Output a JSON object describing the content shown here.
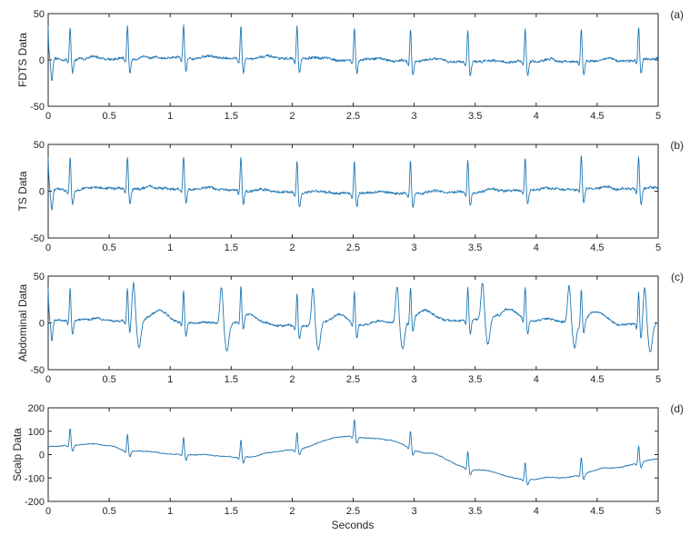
{
  "trace_color": "#1f77b4",
  "xlabel": "Seconds",
  "chart_data": [
    {
      "type": "line",
      "tag": "(a)",
      "ylabel": "FDTS Data",
      "xlim": [
        0,
        5
      ],
      "ylim": [
        -50,
        50
      ],
      "xticks": [
        0,
        0.5,
        1,
        1.5,
        2,
        2.5,
        3,
        3.5,
        4,
        4.5,
        5
      ],
      "xtick_labels": [
        "0",
        "0.5",
        "1",
        "1.5",
        "2",
        "2.5",
        "3",
        "3.5",
        "4",
        "4.5",
        "5"
      ],
      "yticks": [
        -50,
        0,
        50
      ],
      "ytick_labels": [
        "-50",
        "0",
        "50"
      ],
      "series": [
        {
          "beats": [
            0.18,
            0.65,
            1.11,
            1.58,
            2.04,
            2.51,
            2.97,
            3.44,
            3.91,
            4.37,
            4.84
          ],
          "beat_amp": 36,
          "trough": -15,
          "noise": 3,
          "slow_wave": [
            {
              "amp": 2,
              "freq": 0.2,
              "phase": 0
            }
          ],
          "extra_beats": [],
          "onset": "spike-start"
        }
      ]
    },
    {
      "type": "line",
      "tag": "(b)",
      "ylabel": "TS Data",
      "xlim": [
        0,
        5
      ],
      "ylim": [
        -50,
        50
      ],
      "xticks": [
        0,
        0.5,
        1,
        1.5,
        2,
        2.5,
        3,
        3.5,
        4,
        4.5,
        5
      ],
      "xtick_labels": [
        "0",
        "0.5",
        "1",
        "1.5",
        "2",
        "2.5",
        "3",
        "3.5",
        "4",
        "4.5",
        "5"
      ],
      "yticks": [
        -50,
        0,
        50
      ],
      "ytick_labels": [
        "-50",
        "0",
        "50"
      ],
      "series": [
        {
          "beats": [
            0.18,
            0.65,
            1.11,
            1.58,
            2.04,
            2.51,
            2.97,
            3.44,
            3.91,
            4.37,
            4.84
          ],
          "beat_amp": 36,
          "trough": -15,
          "noise": 3,
          "slow_wave": [
            {
              "amp": 2.5,
              "freq": 0.25,
              "phase": 0.5
            }
          ],
          "extra_beats": [],
          "onset": "spike-start"
        }
      ]
    },
    {
      "type": "line",
      "tag": "(c)",
      "ylabel": "Abdominal Data",
      "xlim": [
        0,
        5
      ],
      "ylim": [
        -50,
        50
      ],
      "xticks": [
        0,
        0.5,
        1,
        1.5,
        2,
        2.5,
        3,
        3.5,
        4,
        4.5,
        5
      ],
      "xtick_labels": [
        "0",
        "0.5",
        "1",
        "1.5",
        "2",
        "2.5",
        "3",
        "3.5",
        "4",
        "4.5",
        "5"
      ],
      "yticks": [
        -50,
        0,
        50
      ],
      "ytick_labels": [
        "-50",
        "0",
        "50"
      ],
      "series": [
        {
          "beats": [
            0.18,
            0.65,
            1.11,
            1.58,
            2.04,
            2.51,
            2.97,
            3.44,
            3.91,
            4.37,
            4.84
          ],
          "beat_amp": 35,
          "trough": -15,
          "noise": 2.5,
          "slow_wave": [
            {
              "amp": 3,
              "freq": 0.3,
              "phase": 1
            }
          ],
          "extra_beats": [
            0.7,
            1.42,
            2.17,
            2.86,
            3.56,
            4.27,
            4.89
          ],
          "extra_amp": 40,
          "extra_trough": -28,
          "onset": "spike-start"
        }
      ]
    },
    {
      "type": "line",
      "tag": "(d)",
      "ylabel": "Scalp Data",
      "xlim": [
        0,
        5
      ],
      "ylim": [
        -200,
        200
      ],
      "xticks": [
        0,
        0.5,
        1,
        1.5,
        2,
        2.5,
        3,
        3.5,
        4,
        4.5,
        5
      ],
      "xtick_labels": [
        "0",
        "0.5",
        "1",
        "1.5",
        "2",
        "2.5",
        "3",
        "3.5",
        "4",
        "4.5",
        "5"
      ],
      "yticks": [
        -200,
        -100,
        0,
        100,
        200
      ],
      "ytick_labels": [
        "-200",
        "-100",
        "0",
        "100",
        "200"
      ],
      "series": [
        {
          "beats": [
            0.18,
            0.65,
            1.11,
            1.58,
            2.04,
            2.51,
            2.97,
            3.44,
            3.91,
            4.37,
            4.84
          ],
          "beat_amp": 75,
          "trough": -25,
          "noise": 4,
          "baseline_points": [
            [
              0,
              35
            ],
            [
              0.3,
              42
            ],
            [
              0.5,
              38
            ],
            [
              0.65,
              15
            ],
            [
              1.1,
              0
            ],
            [
              1.6,
              -12
            ],
            [
              2.0,
              20
            ],
            [
              2.45,
              78
            ],
            [
              2.8,
              60
            ],
            [
              3.1,
              5
            ],
            [
              3.5,
              -65
            ],
            [
              3.9,
              -105
            ],
            [
              4.2,
              -100
            ],
            [
              4.6,
              -60
            ],
            [
              5.0,
              -20
            ]
          ],
          "slow_wave": [],
          "extra_beats": [],
          "onset": "none"
        }
      ]
    }
  ]
}
